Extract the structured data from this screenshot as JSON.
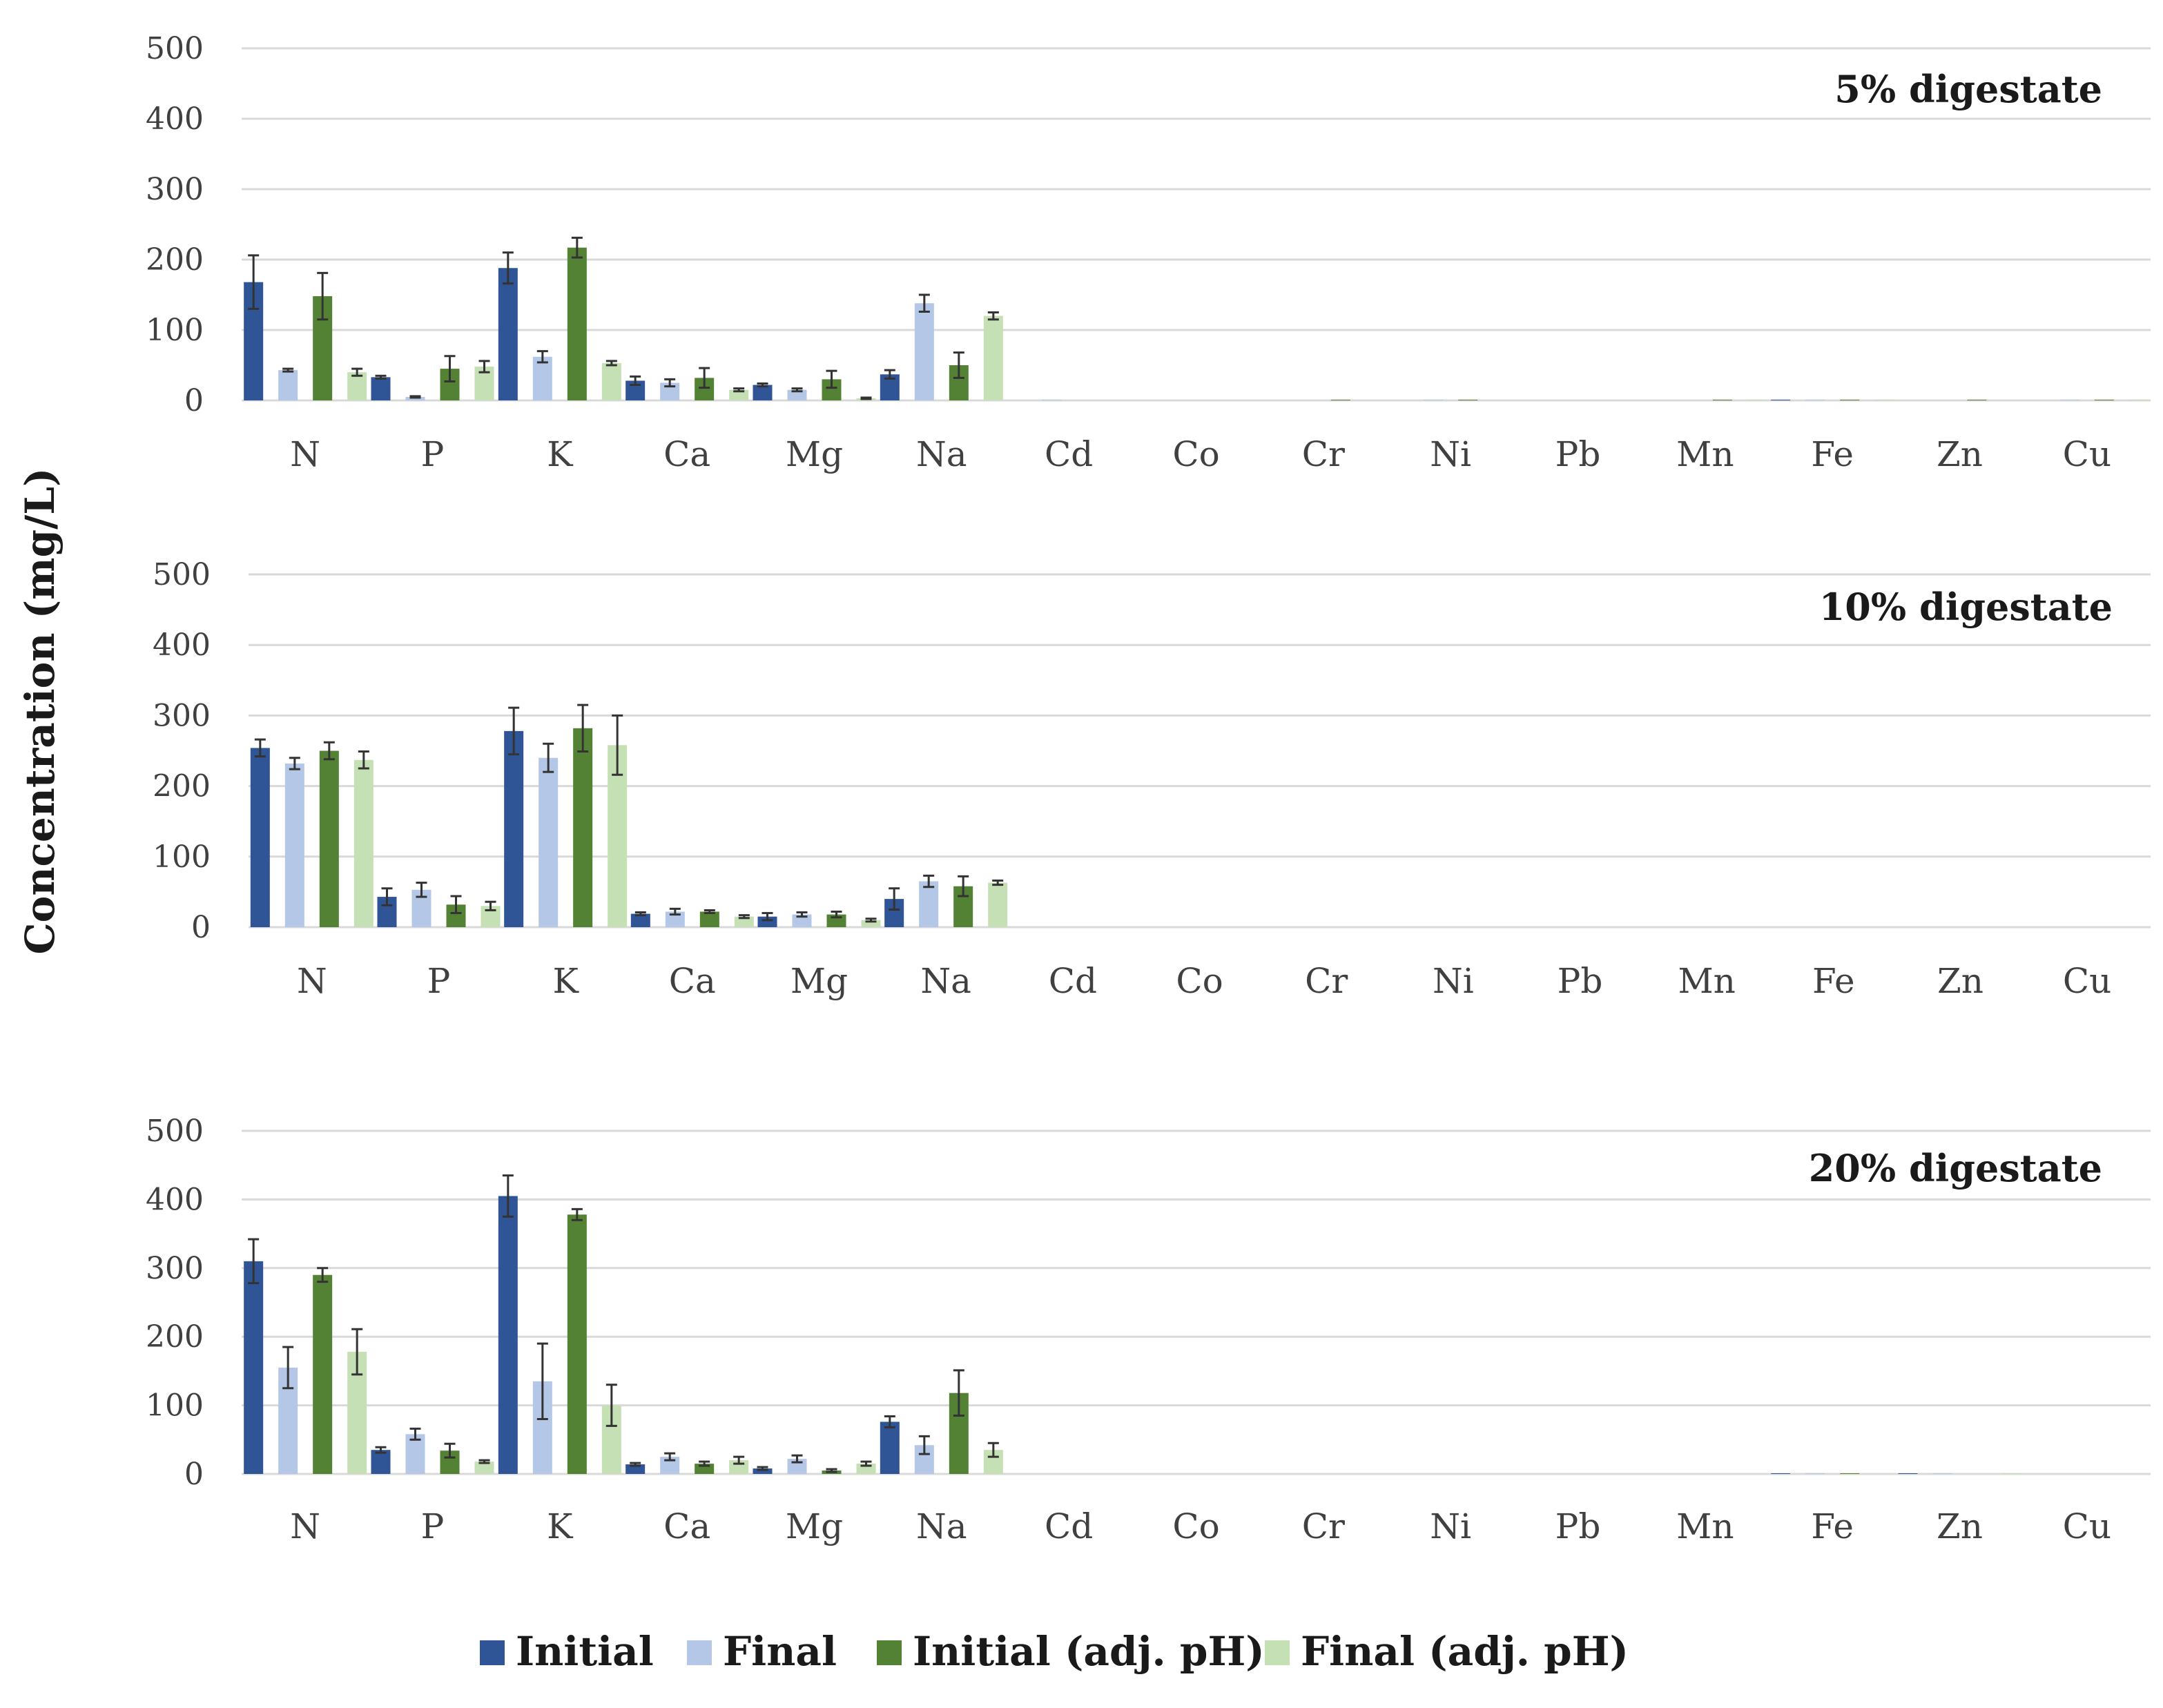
{
  "chart_data": [
    {
      "type": "bar",
      "title": "5% digestate",
      "ylabel": "Concentration (mg/L)",
      "ylim": [
        0,
        500
      ],
      "yticks": [
        0,
        100,
        200,
        300,
        400,
        500
      ],
      "categories": [
        "N",
        "P",
        "K",
        "Ca",
        "Mg",
        "Na",
        "Cd",
        "Co",
        "Cr",
        "Ni",
        "Pb",
        "Mn",
        "Fe",
        "Zn",
        "Cu"
      ],
      "series": [
        {
          "name": "Initial",
          "values": [
            168,
            33,
            188,
            28,
            22,
            37,
            0,
            0,
            0,
            0,
            0,
            0,
            1,
            0,
            0
          ],
          "errors": [
            38,
            2,
            22,
            6,
            2,
            6,
            0,
            0,
            0,
            0,
            0,
            0,
            0,
            0,
            0
          ]
        },
        {
          "name": "Final",
          "values": [
            43,
            5,
            62,
            25,
            15,
            138,
            1,
            0,
            0,
            1,
            0,
            0,
            1,
            0,
            1
          ],
          "errors": [
            2,
            1,
            8,
            5,
            2,
            12,
            0,
            0,
            0,
            0,
            0,
            0,
            0,
            0,
            0
          ]
        },
        {
          "name": "Initial (adj. pH)",
          "values": [
            148,
            45,
            217,
            32,
            30,
            50,
            0,
            0,
            1,
            1,
            0,
            1,
            1,
            1,
            1
          ],
          "errors": [
            33,
            18,
            14,
            14,
            12,
            18,
            0,
            0,
            0,
            0,
            0,
            0,
            0,
            0,
            0
          ]
        },
        {
          "name": "Final (adj. pH)",
          "values": [
            40,
            48,
            53,
            15,
            3,
            120,
            0,
            0,
            0,
            0,
            0,
            1,
            1,
            0,
            1
          ],
          "errors": [
            5,
            8,
            3,
            2,
            1,
            5,
            0,
            0,
            0,
            0,
            0,
            0,
            0,
            0,
            0
          ]
        }
      ]
    },
    {
      "type": "bar",
      "title": "10% digestate",
      "ylabel": "Concentration (mg/L)",
      "ylim": [
        0,
        500
      ],
      "yticks": [
        0,
        100,
        200,
        300,
        400,
        500
      ],
      "categories": [
        "N",
        "P",
        "K",
        "Ca",
        "Mg",
        "Na",
        "Cd",
        "Co",
        "Cr",
        "Ni",
        "Pb",
        "Mn",
        "Fe",
        "Zn",
        "Cu"
      ],
      "series": [
        {
          "name": "Initial",
          "values": [
            254,
            43,
            278,
            19,
            15,
            40,
            0,
            0,
            0,
            0,
            0,
            0,
            0,
            0,
            0
          ],
          "errors": [
            12,
            12,
            33,
            2,
            5,
            15,
            0,
            0,
            0,
            0,
            0,
            0,
            0,
            0,
            0
          ]
        },
        {
          "name": "Final",
          "values": [
            232,
            53,
            240,
            22,
            18,
            65,
            0,
            0,
            0,
            0,
            0,
            0,
            0,
            0,
            0
          ],
          "errors": [
            8,
            10,
            20,
            4,
            3,
            8,
            0,
            0,
            0,
            0,
            0,
            0,
            0,
            0,
            0
          ]
        },
        {
          "name": "Initial (adj. pH)",
          "values": [
            250,
            32,
            282,
            22,
            18,
            58,
            0,
            0,
            0,
            0,
            0,
            0,
            0,
            0,
            0
          ],
          "errors": [
            12,
            12,
            33,
            2,
            4,
            14,
            0,
            0,
            0,
            0,
            0,
            0,
            0,
            0,
            0
          ]
        },
        {
          "name": "Final (adj. pH)",
          "values": [
            237,
            30,
            258,
            15,
            10,
            63,
            0,
            0,
            0,
            0,
            0,
            0,
            0,
            0,
            0
          ],
          "errors": [
            12,
            6,
            42,
            2,
            2,
            3,
            0,
            0,
            0,
            0,
            0,
            0,
            0,
            0,
            0
          ]
        }
      ]
    },
    {
      "type": "bar",
      "title": "20% digestate",
      "ylabel": "Concentration (mg/L)",
      "ylim": [
        0,
        500
      ],
      "yticks": [
        0,
        100,
        200,
        300,
        400,
        500
      ],
      "categories": [
        "N",
        "P",
        "K",
        "Ca",
        "Mg",
        "Na",
        "Cd",
        "Co",
        "Cr",
        "Ni",
        "Pb",
        "Mn",
        "Fe",
        "Zn",
        "Cu"
      ],
      "series": [
        {
          "name": "Initial",
          "values": [
            310,
            35,
            405,
            14,
            8,
            76,
            0,
            0,
            0,
            0,
            0,
            0,
            1,
            1,
            0
          ],
          "errors": [
            32,
            4,
            30,
            2,
            2,
            8,
            0,
            0,
            0,
            0,
            0,
            0,
            0,
            0,
            0
          ]
        },
        {
          "name": "Final",
          "values": [
            155,
            58,
            135,
            25,
            22,
            42,
            0,
            0,
            0,
            0,
            0,
            0,
            1,
            1,
            0
          ],
          "errors": [
            30,
            8,
            55,
            5,
            5,
            13,
            0,
            0,
            0,
            0,
            0,
            0,
            0,
            0,
            0
          ]
        },
        {
          "name": "Initial (adj. pH)",
          "values": [
            290,
            34,
            378,
            15,
            5,
            118,
            0,
            0,
            0,
            0,
            0,
            0,
            1,
            0,
            0
          ],
          "errors": [
            10,
            10,
            8,
            3,
            2,
            33,
            0,
            0,
            0,
            0,
            0,
            0,
            0,
            0,
            0
          ]
        },
        {
          "name": "Final (adj. pH)",
          "values": [
            178,
            18,
            100,
            20,
            15,
            35,
            0,
            0,
            0,
            0,
            0,
            0,
            0,
            1,
            0
          ],
          "errors": [
            33,
            2,
            30,
            5,
            3,
            10,
            0,
            0,
            0,
            0,
            0,
            0,
            0,
            0,
            0
          ]
        }
      ]
    }
  ],
  "colors": {
    "Initial": "#2f5597",
    "Final": "#b4c7e7",
    "Initial (adj. pH)": "#548235",
    "Final (adj. pH)": "#c5e0b4"
  },
  "legend": {
    "position": "bottom-center",
    "items": [
      "Initial",
      "Final",
      "Initial (adj. pH)",
      "Final (adj. pH)"
    ]
  },
  "grid": true
}
